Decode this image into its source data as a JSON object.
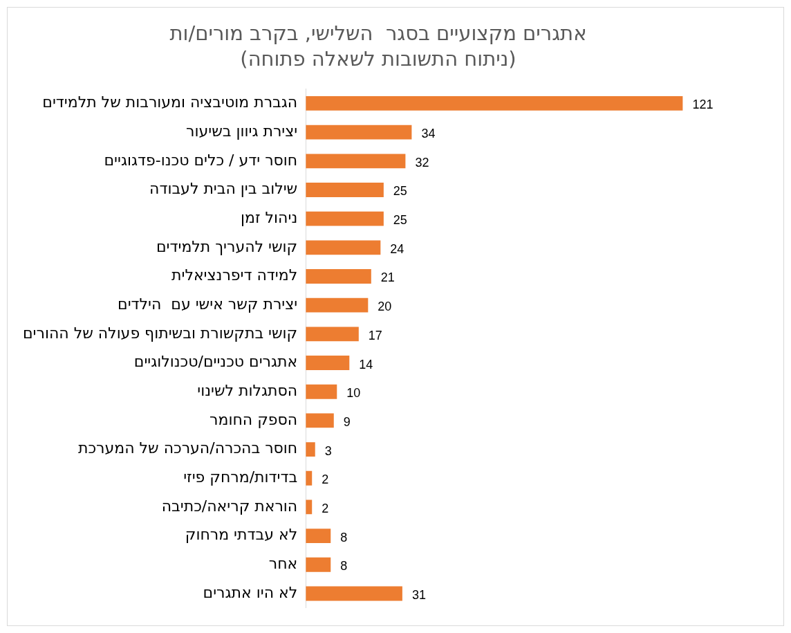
{
  "chart_data": {
    "type": "bar",
    "orientation": "horizontal",
    "title": "אתגרים מקצועיים בסגר  השלישי, בקרב מורים/ות",
    "subtitle": "(ניתוח התשובות לשאלה פתוחה)",
    "categories": [
      "הגברת מוטיבציה ומעורבות של תלמידים",
      "יצירת גיוון בשיעור",
      "חוסר ידע / כלים טכנו-פדגוגיים",
      "שילוב בין הבית לעבודה",
      "ניהול זמן",
      "קושי להעריך תלמידים",
      "למידה דיפרנציאלית",
      "יצירת קשר אישי עם  הילדים",
      "קושי בתקשורת ובשיתוף פעולה של ההורים",
      "אתגרים טכניים/טכנולוגיים",
      "הסתגלות לשינוי",
      "הספק החומר",
      "חוסר בהכרה/הערכה של המערכת",
      "בדידות/מרחק פיזי",
      "הוראת קריאה/כתיבה",
      "לא עבדתי מרחוק",
      "אחר",
      "לא היו אתגרים"
    ],
    "values": [
      121,
      34,
      32,
      25,
      25,
      24,
      21,
      20,
      17,
      14,
      10,
      9,
      3,
      2,
      2,
      8,
      8,
      31
    ],
    "color": "#ed7d31",
    "data_labels": true,
    "legend": false,
    "tick_labels": "y"
  }
}
